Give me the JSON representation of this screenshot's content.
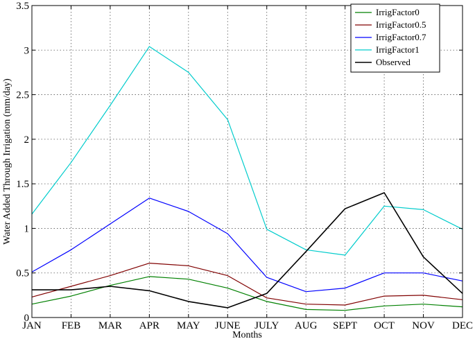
{
  "chart_data": {
    "type": "line",
    "title": "",
    "xlabel": "Months",
    "ylabel": "Water Added Through Irrigation (mm/day)",
    "categories": [
      "JAN",
      "FEB",
      "MAR",
      "APR",
      "MAY",
      "JUNE",
      "JULY",
      "AUG",
      "SEPT",
      "OCT",
      "NOV",
      "DEC"
    ],
    "ylim": [
      0,
      3.5
    ],
    "yticks": [
      "0",
      "0.5",
      "1",
      "1.5",
      "2",
      "2.5",
      "3",
      "3.5"
    ],
    "grid": true,
    "legend_position": "top-right",
    "series": [
      {
        "name": "IrrigFactor0",
        "color": "#008000",
        "values": [
          0.15,
          0.24,
          0.36,
          0.46,
          0.43,
          0.33,
          0.18,
          0.09,
          0.08,
          0.13,
          0.15,
          0.12
        ]
      },
      {
        "name": "IrrigFactor0.5",
        "color": "#800000",
        "values": [
          0.23,
          0.35,
          0.47,
          0.61,
          0.58,
          0.47,
          0.22,
          0.15,
          0.14,
          0.24,
          0.25,
          0.2
        ]
      },
      {
        "name": "IrrigFactor0.7",
        "color": "#0000ff",
        "values": [
          0.51,
          0.76,
          1.05,
          1.34,
          1.19,
          0.94,
          0.45,
          0.29,
          0.33,
          0.5,
          0.5,
          0.41
        ]
      },
      {
        "name": "IrrigFactor1",
        "color": "#00cccc",
        "values": [
          1.16,
          1.74,
          2.38,
          3.04,
          2.75,
          2.22,
          0.99,
          0.76,
          0.7,
          1.25,
          1.21,
          0.99
        ]
      },
      {
        "name": "Observed",
        "color": "#000000",
        "values": [
          0.31,
          0.31,
          0.35,
          0.3,
          0.18,
          0.11,
          0.27,
          0.74,
          1.22,
          1.4,
          0.68,
          0.27
        ]
      }
    ]
  }
}
